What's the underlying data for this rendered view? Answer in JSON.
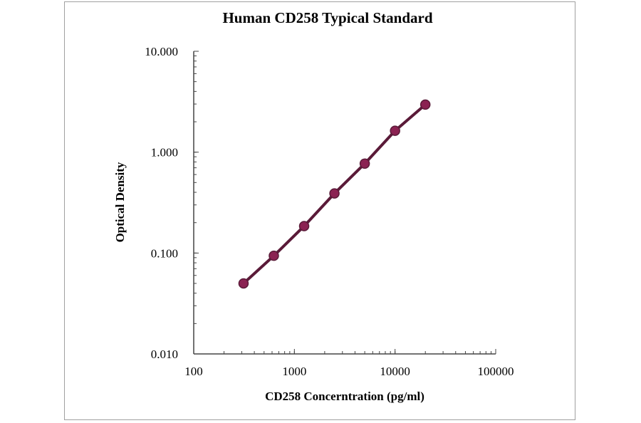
{
  "chart_data": {
    "type": "line",
    "title": "Human CD258 Typical Standard",
    "xlabel": "CD258 Concerntration (pg/ml)",
    "ylabel": "Optical Density",
    "x_scale": "log",
    "y_scale": "log",
    "xlim": [
      100,
      100000
    ],
    "ylim": [
      0.01,
      10
    ],
    "x_ticks": [
      100,
      1000,
      10000,
      100000
    ],
    "x_tick_labels": [
      "100",
      "1000",
      "10000",
      "100000"
    ],
    "y_ticks": [
      0.01,
      0.1,
      1,
      10
    ],
    "y_tick_labels": [
      "0.010",
      "0.100",
      "1.000",
      "10.000"
    ],
    "grid": false,
    "series": [
      {
        "x": [
          312.5,
          625,
          1250,
          2500,
          5000,
          10000,
          20000
        ],
        "y": [
          0.05,
          0.094,
          0.185,
          0.39,
          0.77,
          1.63,
          2.96
        ],
        "color": "#8b2252",
        "marker": "circle"
      }
    ]
  }
}
